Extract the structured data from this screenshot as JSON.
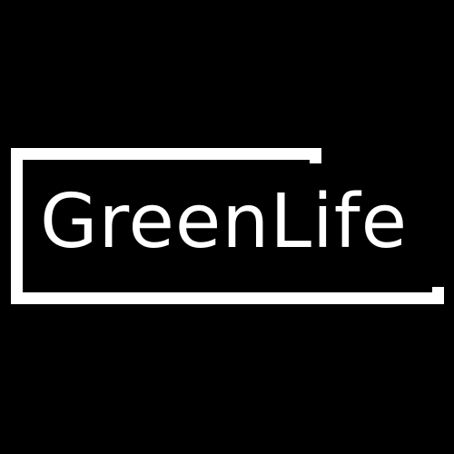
{
  "logo": {
    "wordmark": "GreenLife",
    "colors": {
      "background": "#000000",
      "foreground": "#ffffff"
    }
  }
}
